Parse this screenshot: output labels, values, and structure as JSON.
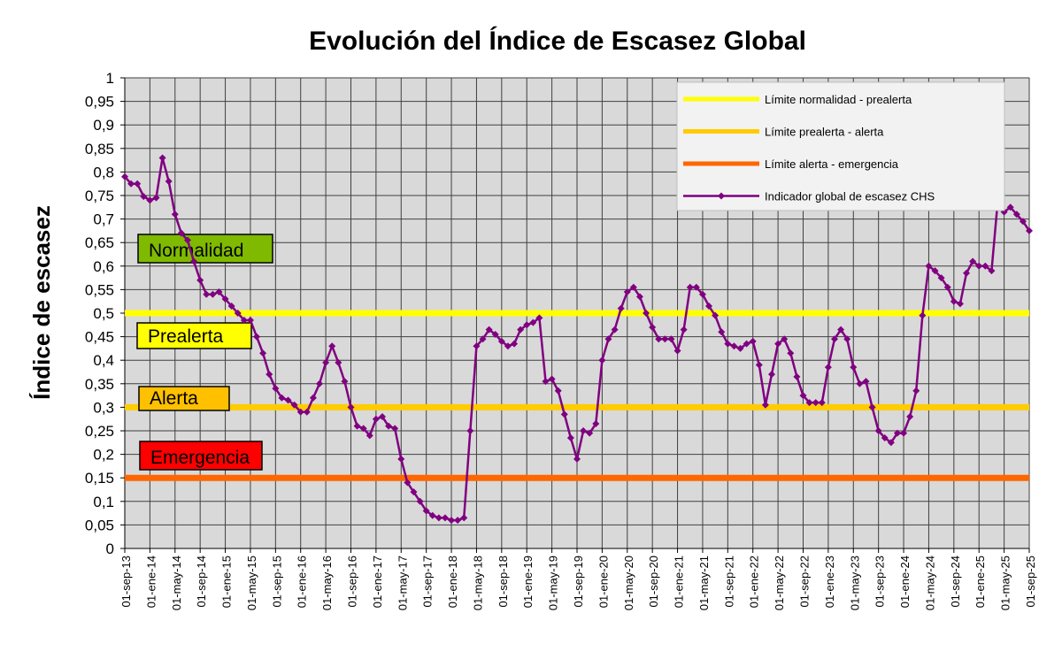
{
  "chart_data": {
    "type": "line",
    "title": "Evolución del Índice de Escasez Global",
    "xlabel": "",
    "ylabel": "Índice de escasez",
    "ylim": [
      0,
      1
    ],
    "ytick_step": 0.05,
    "yticks": [
      "0",
      "0,05",
      "0,1",
      "0,15",
      "0,2",
      "0,25",
      "0,3",
      "0,35",
      "0,4",
      "0,45",
      "0,5",
      "0,55",
      "0,6",
      "0,65",
      "0,7",
      "0,75",
      "0,8",
      "0,85",
      "0,9",
      "0,95",
      "1"
    ],
    "x_range": [
      "01-sep-13",
      "01-sep-25"
    ],
    "x_tick_interval_months": 4,
    "xticks": [
      "01-sep-13",
      "01-ene-14",
      "01-may-14",
      "01-sep-14",
      "01-ene-15",
      "01-may-15",
      "01-sep-15",
      "01-ene-16",
      "01-may-16",
      "01-sep-16",
      "01-ene-17",
      "01-may-17",
      "01-sep-17",
      "01-ene-18",
      "01-may-18",
      "01-sep-18",
      "01-ene-19",
      "01-may-19",
      "01-sep-19",
      "01-ene-20",
      "01-may-20",
      "01-sep-20",
      "01-ene-21",
      "01-may-21",
      "01-sep-21",
      "01-ene-22",
      "01-may-22",
      "01-sep-22",
      "01-ene-23",
      "01-may-23",
      "01-sep-23",
      "01-ene-24",
      "01-may-24",
      "01-sep-24",
      "01-ene-25",
      "01-may-25",
      "01-sep-25"
    ],
    "grid": true,
    "legend_position": "top-right",
    "background": "#d9d9d9",
    "thresholds": [
      {
        "name": "Límite normalidad - prealerta",
        "value": 0.5,
        "color": "#ffff00"
      },
      {
        "name": "Límite prealerta - alerta",
        "value": 0.3,
        "color": "#ffcc00"
      },
      {
        "name": "Límite alerta - emergencia",
        "value": 0.15,
        "color": "#ff6600"
      }
    ],
    "zones": [
      {
        "label": "Normalidad",
        "color": "#7fba00"
      },
      {
        "label": "Prealerta",
        "color": "#ffff00"
      },
      {
        "label": "Alerta",
        "color": "#ffc000"
      },
      {
        "label": "Emergencia",
        "color": "#ff0000"
      }
    ],
    "series": [
      {
        "name": "Indicador global de escasez CHS",
        "color": "#800080",
        "frequency": "monthly",
        "start": "01-sep-13",
        "values": [
          0.79,
          0.775,
          0.775,
          0.748,
          0.74,
          0.745,
          0.83,
          0.78,
          0.71,
          0.67,
          0.655,
          0.61,
          0.57,
          0.54,
          0.54,
          0.545,
          0.53,
          0.515,
          0.5,
          0.485,
          0.485,
          0.45,
          0.415,
          0.37,
          0.34,
          0.32,
          0.315,
          0.305,
          0.29,
          0.29,
          0.32,
          0.35,
          0.395,
          0.43,
          0.395,
          0.355,
          0.3,
          0.26,
          0.255,
          0.24,
          0.275,
          0.28,
          0.26,
          0.255,
          0.19,
          0.14,
          0.12,
          0.1,
          0.08,
          0.07,
          0.065,
          0.065,
          0.06,
          0.06,
          0.065,
          0.25,
          0.43,
          0.445,
          0.465,
          0.455,
          0.44,
          0.43,
          0.435,
          0.465,
          0.475,
          0.48,
          0.49,
          0.355,
          0.36,
          0.335,
          0.285,
          0.235,
          0.19,
          0.25,
          0.245,
          0.265,
          0.4,
          0.445,
          0.465,
          0.51,
          0.545,
          0.555,
          0.535,
          0.5,
          0.47,
          0.445,
          0.445,
          0.445,
          0.42,
          0.465,
          0.555,
          0.555,
          0.54,
          0.515,
          0.495,
          0.46,
          0.435,
          0.43,
          0.425,
          0.435,
          0.44,
          0.39,
          0.305,
          0.37,
          0.435,
          0.445,
          0.415,
          0.365,
          0.325,
          0.31,
          0.31,
          0.31,
          0.385,
          0.445,
          0.465,
          0.445,
          0.385,
          0.35,
          0.355,
          0.3,
          0.25,
          0.235,
          0.225,
          0.245,
          0.245,
          0.28,
          0.335,
          0.495,
          0.6,
          0.59,
          0.575,
          0.555,
          0.525,
          0.52,
          0.585,
          0.61,
          0.6,
          0.6,
          0.59,
          0.74,
          0.715,
          0.725,
          0.71,
          0.695,
          0.675
        ]
      }
    ]
  }
}
